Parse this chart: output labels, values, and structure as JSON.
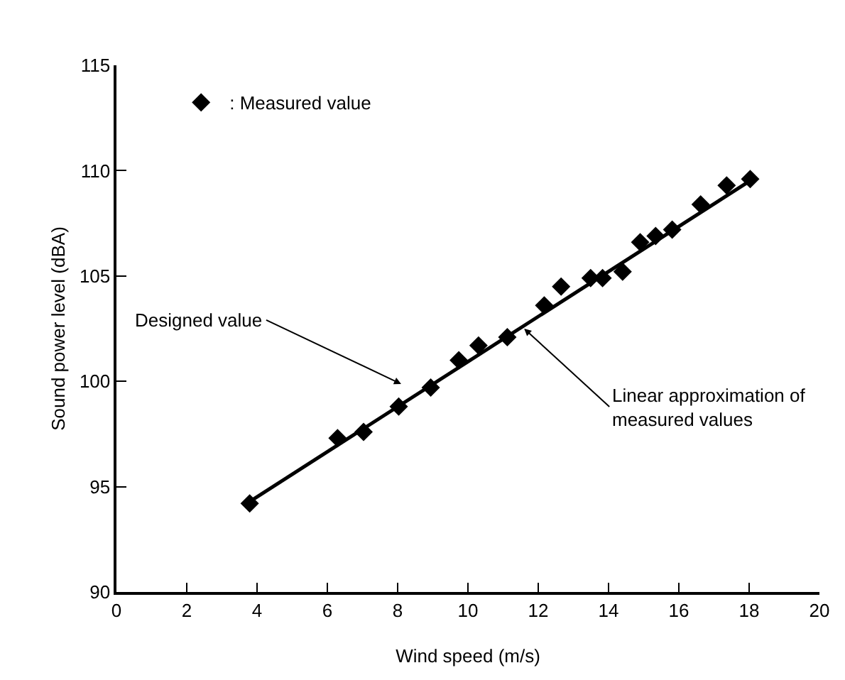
{
  "chart_data": {
    "type": "scatter",
    "xlabel": "Wind speed (m/s)",
    "ylabel": "Sound power level (dBA)",
    "xlim": [
      0,
      20
    ],
    "xticks": [
      0,
      2,
      4,
      6,
      8,
      10,
      12,
      14,
      16,
      18,
      20
    ],
    "ylim": [
      90,
      115
    ],
    "yticks": [
      90,
      95,
      100,
      105,
      110,
      115
    ],
    "grid": false,
    "legend": "top left",
    "marker": "diamond",
    "series": [
      {
        "name": ": Measured value",
        "color": "#000000",
        "x": [
          3.79,
          6.29,
          7.03,
          8.03,
          8.94,
          9.74,
          10.3,
          11.12,
          12.17,
          12.65,
          13.49,
          13.83,
          14.4,
          14.9,
          15.34,
          15.81,
          16.62,
          17.36,
          18.03
        ],
        "values": [
          94.2,
          97.3,
          97.6,
          98.8,
          99.7,
          101.0,
          101.7,
          102.1,
          103.6,
          104.5,
          104.9,
          104.9,
          105.2,
          106.6,
          106.9,
          107.2,
          108.4,
          109.3,
          109.6
        ]
      },
      {
        "type": "line",
        "marker": "none",
        "color": "#000000",
        "x": [
          3.8,
          18.1
        ],
        "values": [
          94.3,
          109.6
        ]
      }
    ],
    "annotations": [
      "Designed value",
      {
        "text": "Linear approximation of\nmeasured values",
        "x": 11.6,
        "y": 102.5
      }
    ]
  }
}
